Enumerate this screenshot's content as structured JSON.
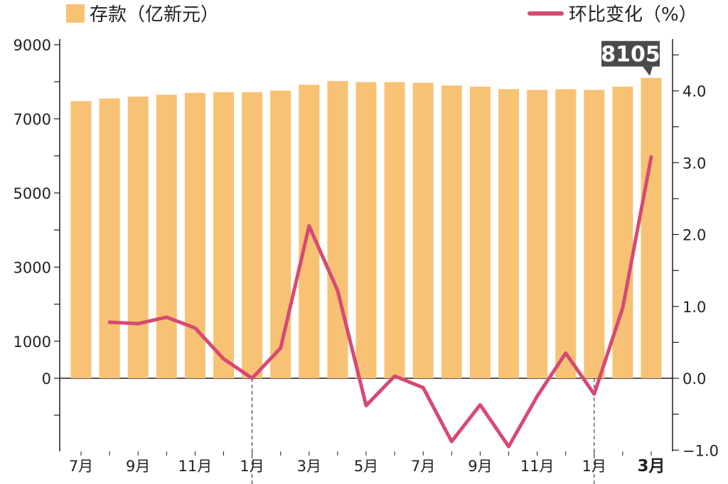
{
  "colors": {
    "bar": "#f8c274",
    "line": "#d64a72",
    "axis": "#231f20",
    "callout_bg": "#4a4a4a"
  },
  "legend": {
    "bar_label": "存款（亿新元）",
    "line_label": "环比变化（%）"
  },
  "callout": {
    "value": "8105"
  },
  "chart_data": {
    "type": "bar",
    "x_tick_labels": [
      "7月",
      "9月",
      "11月",
      "1月",
      "3月",
      "5月",
      "7月",
      "9月",
      "11月",
      "1月",
      "3月"
    ],
    "x_tick_indices": [
      0,
      2,
      4,
      6,
      8,
      10,
      12,
      14,
      16,
      18,
      20
    ],
    "bold_tick_index": 20,
    "period_divider_indices": [
      6,
      18
    ],
    "y_left": {
      "ticks": [
        "9000",
        "7000",
        "5000",
        "3000",
        "1000",
        "0"
      ],
      "tick_values": [
        9000,
        7000,
        5000,
        3000,
        1000,
        0
      ],
      "range": [
        -1950,
        9300
      ]
    },
    "y_right": {
      "ticks": [
        "4.0",
        "3.0",
        "2.0",
        "1.0",
        "0.0",
        "−1.0"
      ],
      "tick_values": [
        4.0,
        3.0,
        2.0,
        1.0,
        0.0,
        -1.0
      ],
      "range": [
        -1.0,
        4.6
      ]
    },
    "series": [
      {
        "name": "存款（亿新元）",
        "type": "bar",
        "axis": "left",
        "values": [
          7480,
          7550,
          7600,
          7650,
          7700,
          7720,
          7720,
          7760,
          7920,
          8020,
          7990,
          7990,
          7970,
          7900,
          7870,
          7800,
          7780,
          7800,
          7780,
          7870,
          8105
        ]
      },
      {
        "name": "环比变化（%）",
        "type": "line",
        "axis": "right",
        "values": [
          null,
          0.78,
          0.76,
          0.85,
          0.7,
          0.27,
          0.0,
          0.42,
          2.12,
          1.22,
          -0.38,
          0.03,
          -0.13,
          -0.88,
          -0.37,
          -0.95,
          -0.25,
          0.35,
          -0.22,
          0.98,
          3.08
        ]
      }
    ]
  }
}
